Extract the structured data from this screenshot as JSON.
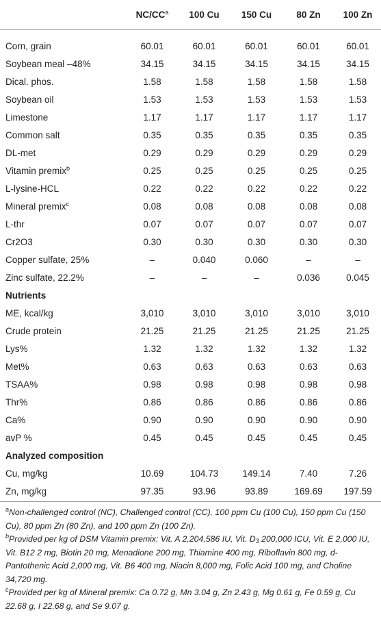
{
  "table": {
    "columns": [
      {
        "text": "NC/CC",
        "note": "a"
      },
      {
        "text": "100 Cu"
      },
      {
        "text": "150 Cu"
      },
      {
        "text": "80 Zn"
      },
      {
        "text": "100 Zn"
      }
    ],
    "rows": [
      {
        "label": "Corn, grain",
        "cells": [
          "60.01",
          "60.01",
          "60.01",
          "60.01",
          "60.01"
        ]
      },
      {
        "label": "Soybean meal –48%",
        "cells": [
          "34.15",
          "34.15",
          "34.15",
          "34.15",
          "34.15"
        ]
      },
      {
        "label": "Dical. phos.",
        "cells": [
          "1.58",
          "1.58",
          "1.58",
          "1.58",
          "1.58"
        ]
      },
      {
        "label": "Soybean oil",
        "cells": [
          "1.53",
          "1.53",
          "1.53",
          "1.53",
          "1.53"
        ]
      },
      {
        "label": "Limestone",
        "cells": [
          "1.17",
          "1.17",
          "1.17",
          "1.17",
          "1.17"
        ]
      },
      {
        "label": "Common salt",
        "cells": [
          "0.35",
          "0.35",
          "0.35",
          "0.35",
          "0.35"
        ]
      },
      {
        "label": "DL-met",
        "cells": [
          "0.29",
          "0.29",
          "0.29",
          "0.29",
          "0.29"
        ]
      },
      {
        "label": "Vitamin premix",
        "note": "b",
        "cells": [
          "0.25",
          "0.25",
          "0.25",
          "0.25",
          "0.25"
        ]
      },
      {
        "label": "L-lysine-HCL",
        "cells": [
          "0.22",
          "0.22",
          "0.22",
          "0.22",
          "0.22"
        ]
      },
      {
        "label": "Mineral premix",
        "note": "c",
        "cells": [
          "0.08",
          "0.08",
          "0.08",
          "0.08",
          "0.08"
        ]
      },
      {
        "label": "L-thr",
        "cells": [
          "0.07",
          "0.07",
          "0.07",
          "0.07",
          "0.07"
        ]
      },
      {
        "label": "Cr2O3",
        "cells": [
          "0.30",
          "0.30",
          "0.30",
          "0.30",
          "0.30"
        ]
      },
      {
        "label": "Copper sulfate, 25%",
        "cells": [
          "–",
          "0.040",
          "0.060",
          "–",
          "–"
        ]
      },
      {
        "label": "Zinc sulfate, 22.2%",
        "cells": [
          "–",
          "–",
          "–",
          "0.036",
          "0.045"
        ]
      },
      {
        "section": "Nutrients"
      },
      {
        "label": "ME, kcal/kg",
        "cells": [
          "3,010",
          "3,010",
          "3,010",
          "3,010",
          "3,010"
        ]
      },
      {
        "label": "Crude protein",
        "cells": [
          "21.25",
          "21.25",
          "21.25",
          "21.25",
          "21.25"
        ]
      },
      {
        "label": "Lys%",
        "cells": [
          "1.32",
          "1.32",
          "1.32",
          "1.32",
          "1.32"
        ]
      },
      {
        "label": "Met%",
        "cells": [
          "0.63",
          "0.63",
          "0.63",
          "0.63",
          "0.63"
        ]
      },
      {
        "label": "TSAA%",
        "cells": [
          "0.98",
          "0.98",
          "0.98",
          "0.98",
          "0.98"
        ]
      },
      {
        "label": "Thr%",
        "cells": [
          "0.86",
          "0.86",
          "0.86",
          "0.86",
          "0.86"
        ]
      },
      {
        "label": "Ca%",
        "cells": [
          "0.90",
          "0.90",
          "0.90",
          "0.90",
          "0.90"
        ]
      },
      {
        "label": "avP %",
        "cells": [
          "0.45",
          "0.45",
          "0.45",
          "0.45",
          "0.45"
        ]
      },
      {
        "section": "Analyzed composition"
      },
      {
        "label": "Cu, mg/kg",
        "cells": [
          "10.69",
          "104.73",
          "149.14",
          "7.40",
          "7.26"
        ]
      },
      {
        "label": "Zn, mg/kg",
        "cells": [
          "97.35",
          "93.96",
          "93.89",
          "169.69",
          "197.59"
        ]
      }
    ]
  },
  "footnotes": [
    {
      "marker": "a",
      "parts": [
        {
          "text": "Non-challenged control (NC), Challenged control (CC), 100 ppm Cu (100 Cu), 150 ppm Cu (150 Cu), 80 ppm Zn (80 Zn), and 100 ppm Zn (100 Zn)."
        }
      ]
    },
    {
      "marker": "b",
      "parts": [
        {
          "text": "Provided per kg of DSM Vitamin premix: Vit. A 2,204,586 IU, Vit. D"
        },
        {
          "sub": "3"
        },
        {
          "text": " 200,000 ICU, Vit. E 2,000 IU, Vit. B12 2 mg, Biotin 20 mg, Menadione 200 mg, Thiamine 400 mg, Riboflavin 800 mg, d-Pantothenic Acid 2,000 mg, Vit. B6 400 mg, Niacin 8,000 mg, Folic Acid 100 mg, and Choline 34,720 mg."
        }
      ]
    },
    {
      "marker": "c",
      "parts": [
        {
          "text": "Provided per kg of Mineral premix: Ca 0.72 g, Mn 3.04 g, Zn 2.43 g, Mg 0.61 g, Fe 0.59 g, Cu 22.68 g, I 22.68 g, and Se 9.07 g."
        }
      ]
    }
  ]
}
